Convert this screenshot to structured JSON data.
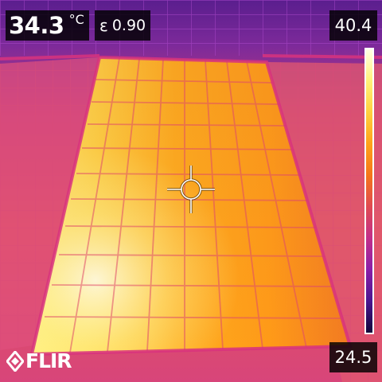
{
  "measurement": {
    "spot_temperature": "34.3",
    "unit": "°C",
    "emissivity_symbol": "ε",
    "emissivity": "0.90"
  },
  "scale": {
    "max": "40.4",
    "min": "24.5",
    "palette": [
      "#ffffe6",
      "#fff27a",
      "#ffd040",
      "#ffa21a",
      "#f5761a",
      "#e04a52",
      "#c22f8a",
      "#8a1fa8",
      "#4b1690",
      "#12063a"
    ]
  },
  "branding": {
    "logo_text": "FLIR"
  },
  "icons": {
    "spot_meter": "crosshair-icon",
    "logo": "flir-diamond-icon"
  },
  "colors": {
    "overlay_bg": "#000000",
    "overlay_text": "#ffffff",
    "frame_magenta": "#d8337e",
    "sky_purple": "#5a1e8e"
  }
}
